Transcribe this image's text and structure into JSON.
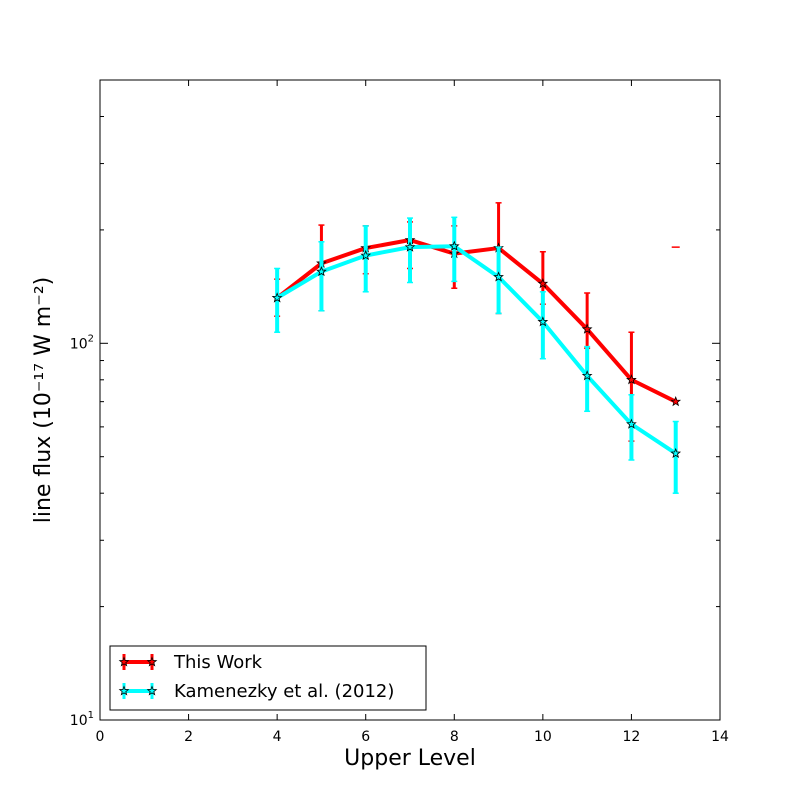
{
  "chart_data": {
    "type": "line",
    "xlabel": "Upper Level",
    "ylabel": "line flux (10⁻¹⁷ W m⁻²)",
    "y_scale": "log",
    "xlim": [
      0,
      14
    ],
    "ylim": [
      10,
      500
    ],
    "x_ticks": [
      0,
      2,
      4,
      6,
      8,
      10,
      12,
      14
    ],
    "y_ticks": [
      {
        "value": 10,
        "base": "10",
        "exp": "1"
      },
      {
        "value": 100,
        "base": "10",
        "exp": "2"
      }
    ],
    "legend_position": "lower-left",
    "series": [
      {
        "name": "This Work",
        "color": "#ff0000",
        "marker": "star",
        "x": [
          4,
          5,
          6,
          7,
          8,
          9,
          10,
          11,
          12,
          13
        ],
        "y": [
          132,
          163,
          179,
          188,
          173,
          179,
          144,
          109,
          80,
          70
        ],
        "err_low": [
          118,
          122,
          153,
          158,
          140,
          120,
          127,
          97,
          55,
          70
        ],
        "err_high": [
          148,
          206,
          205,
          210,
          205,
          236,
          175,
          136,
          107,
          70
        ]
      },
      {
        "name": "Kamenezky et al. (2012)",
        "color": "#00ffff",
        "marker": "star",
        "x": [
          4,
          5,
          6,
          7,
          8,
          9,
          10,
          11,
          12,
          13
        ],
        "y": [
          132,
          155,
          171,
          180,
          181,
          150,
          114,
          82,
          61,
          51
        ],
        "err_low": [
          107,
          122,
          137,
          145,
          146,
          120,
          91,
          66,
          49,
          40
        ],
        "err_high": [
          158,
          186,
          205,
          215,
          216,
          180,
          137,
          98,
          73,
          62
        ]
      }
    ],
    "stray_marks": [
      {
        "x": 13,
        "y": 180,
        "color": "#ff0000"
      }
    ]
  }
}
